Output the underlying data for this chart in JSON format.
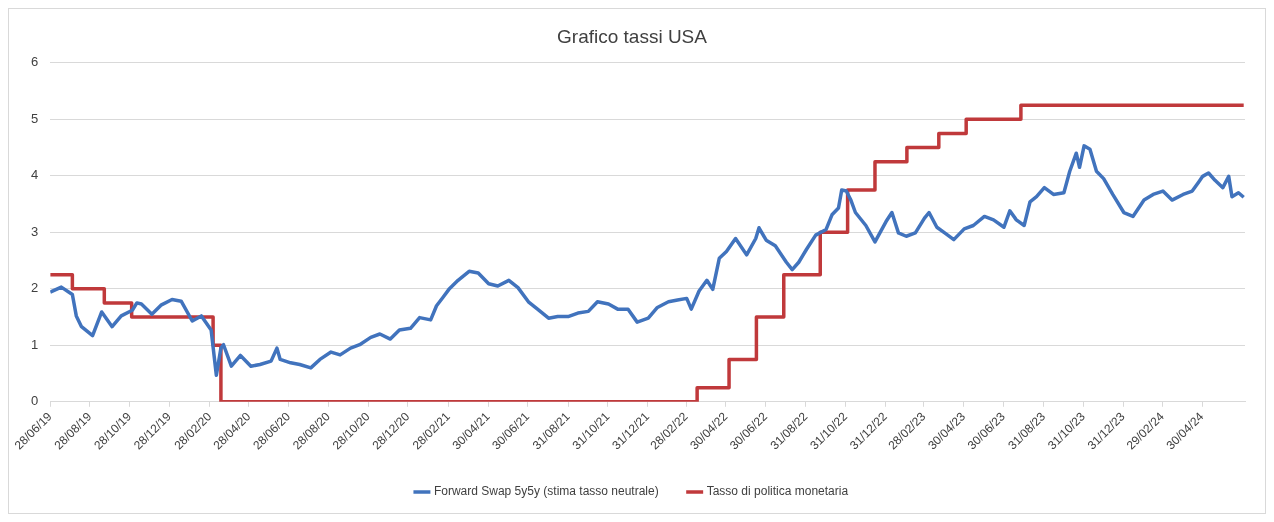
{
  "chart_data": {
    "type": "line",
    "title": "Grafico tassi USA",
    "xlim": [
      "2019-06-28",
      "2024-07-05"
    ],
    "xticks": [
      {
        "value": "2019-06-28",
        "label": "28/06/19"
      },
      {
        "value": "2019-08-28",
        "label": "28/08/19"
      },
      {
        "value": "2019-10-28",
        "label": "28/10/19"
      },
      {
        "value": "2019-12-28",
        "label": "28/12/19"
      },
      {
        "value": "2020-02-28",
        "label": "28/02/20"
      },
      {
        "value": "2020-04-28",
        "label": "28/04/20"
      },
      {
        "value": "2020-06-28",
        "label": "28/06/20"
      },
      {
        "value": "2020-08-28",
        "label": "28/08/20"
      },
      {
        "value": "2020-10-28",
        "label": "28/10/20"
      },
      {
        "value": "2020-12-28",
        "label": "28/12/20"
      },
      {
        "value": "2021-02-28",
        "label": "28/02/21"
      },
      {
        "value": "2021-04-30",
        "label": "30/04/21"
      },
      {
        "value": "2021-06-30",
        "label": "30/06/21"
      },
      {
        "value": "2021-08-31",
        "label": "31/08/21"
      },
      {
        "value": "2021-10-31",
        "label": "31/10/21"
      },
      {
        "value": "2021-12-31",
        "label": "31/12/21"
      },
      {
        "value": "2022-02-28",
        "label": "28/02/22"
      },
      {
        "value": "2022-04-30",
        "label": "30/04/22"
      },
      {
        "value": "2022-06-30",
        "label": "30/06/22"
      },
      {
        "value": "2022-08-31",
        "label": "31/08/22"
      },
      {
        "value": "2022-10-31",
        "label": "31/10/22"
      },
      {
        "value": "2022-12-31",
        "label": "31/12/22"
      },
      {
        "value": "2023-02-28",
        "label": "28/02/23"
      },
      {
        "value": "2023-04-30",
        "label": "30/04/23"
      },
      {
        "value": "2023-06-30",
        "label": "30/06/23"
      },
      {
        "value": "2023-08-31",
        "label": "31/08/23"
      },
      {
        "value": "2023-10-31",
        "label": "31/10/23"
      },
      {
        "value": "2023-12-31",
        "label": "31/12/23"
      },
      {
        "value": "2024-02-29",
        "label": "29/02/24"
      },
      {
        "value": "2024-04-30",
        "label": "30/04/24"
      }
    ],
    "ylim": [
      0,
      6
    ],
    "yticks": [
      0,
      1,
      2,
      3,
      4,
      5,
      6
    ],
    "grid": "y",
    "legend": "bottom",
    "marker": "none",
    "line_style": "solid",
    "series": [
      {
        "name": "Forward Swap 5y5y (stima tasso neutrale)",
        "type": "line",
        "color": "#4173bd",
        "x": [
          "2019-06-28",
          "2019-07-15",
          "2019-08-01",
          "2019-08-07",
          "2019-08-15",
          "2019-09-01",
          "2019-09-15",
          "2019-10-01",
          "2019-10-15",
          "2019-11-01",
          "2019-11-08",
          "2019-11-15",
          "2019-12-01",
          "2019-12-15",
          "2020-01-01",
          "2020-01-15",
          "2020-02-01",
          "2020-02-15",
          "2020-03-01",
          "2020-03-09",
          "2020-03-16",
          "2020-03-20",
          "2020-04-01",
          "2020-04-15",
          "2020-05-01",
          "2020-05-15",
          "2020-06-01",
          "2020-06-10",
          "2020-06-15",
          "2020-07-01",
          "2020-07-15",
          "2020-08-01",
          "2020-08-15",
          "2020-09-01",
          "2020-09-15",
          "2020-10-01",
          "2020-10-15",
          "2020-11-01",
          "2020-11-15",
          "2020-12-01",
          "2020-12-15",
          "2021-01-01",
          "2021-01-15",
          "2021-02-01",
          "2021-02-10",
          "2021-02-20",
          "2021-03-01",
          "2021-03-15",
          "2021-04-01",
          "2021-04-15",
          "2021-05-01",
          "2021-05-15",
          "2021-06-01",
          "2021-06-15",
          "2021-07-01",
          "2021-07-15",
          "2021-08-01",
          "2021-08-15",
          "2021-09-01",
          "2021-09-15",
          "2021-10-01",
          "2021-10-15",
          "2021-11-01",
          "2021-11-15",
          "2021-12-01",
          "2021-12-15",
          "2022-01-01",
          "2022-01-15",
          "2022-02-01",
          "2022-02-15",
          "2022-03-01",
          "2022-03-08",
          "2022-03-20",
          "2022-04-01",
          "2022-04-10",
          "2022-04-20",
          "2022-05-01",
          "2022-05-15",
          "2022-06-01",
          "2022-06-15",
          "2022-06-20",
          "2022-07-01",
          "2022-07-15",
          "2022-08-01",
          "2022-08-10",
          "2022-08-20",
          "2022-09-01",
          "2022-09-15",
          "2022-10-01",
          "2022-10-10",
          "2022-10-20",
          "2022-10-25",
          "2022-11-01",
          "2022-11-08",
          "2022-11-15",
          "2022-12-01",
          "2022-12-15",
          "2023-01-01",
          "2023-01-10",
          "2023-01-20",
          "2023-02-01",
          "2023-02-15",
          "2023-03-01",
          "2023-03-08",
          "2023-03-20",
          "2023-04-01",
          "2023-04-15",
          "2023-05-01",
          "2023-05-15",
          "2023-06-01",
          "2023-06-15",
          "2023-07-01",
          "2023-07-10",
          "2023-07-20",
          "2023-08-01",
          "2023-08-10",
          "2023-08-20",
          "2023-09-01",
          "2023-09-15",
          "2023-10-01",
          "2023-10-10",
          "2023-10-20",
          "2023-10-25",
          "2023-11-01",
          "2023-11-10",
          "2023-11-20",
          "2023-12-01",
          "2023-12-15",
          "2024-01-01",
          "2024-01-15",
          "2024-02-01",
          "2024-02-15",
          "2024-03-01",
          "2024-03-15",
          "2024-04-01",
          "2024-04-15",
          "2024-04-25",
          "2024-05-01",
          "2024-05-10",
          "2024-05-20",
          "2024-06-01",
          "2024-06-10",
          "2024-06-15",
          "2024-06-25",
          "2024-07-03"
        ],
        "values": [
          1.94,
          2.03,
          1.9,
          1.52,
          1.33,
          1.17,
          1.59,
          1.33,
          1.52,
          1.62,
          1.75,
          1.73,
          1.55,
          1.71,
          1.81,
          1.78,
          1.43,
          1.52,
          1.27,
          0.47,
          0.95,
          1.01,
          0.63,
          0.82,
          0.63,
          0.66,
          0.72,
          0.95,
          0.75,
          0.69,
          0.66,
          0.6,
          0.75,
          0.88,
          0.83,
          0.95,
          1.01,
          1.14,
          1.2,
          1.11,
          1.27,
          1.3,
          1.49,
          1.45,
          1.7,
          1.85,
          1.99,
          2.15,
          2.31,
          2.28,
          2.09,
          2.05,
          2.15,
          2.02,
          1.77,
          1.64,
          1.48,
          1.51,
          1.51,
          1.57,
          1.6,
          1.77,
          1.73,
          1.64,
          1.64,
          1.41,
          1.48,
          1.67,
          1.77,
          1.8,
          1.83,
          1.64,
          1.96,
          2.15,
          1.99,
          2.54,
          2.66,
          2.89,
          2.6,
          2.89,
          3.08,
          2.86,
          2.76,
          2.47,
          2.34,
          2.47,
          2.7,
          2.95,
          3.05,
          3.31,
          3.43,
          3.75,
          3.73,
          3.57,
          3.35,
          3.12,
          2.83,
          3.19,
          3.35,
          2.99,
          2.93,
          2.99,
          3.25,
          3.35,
          3.09,
          2.99,
          2.87,
          3.06,
          3.12,
          3.28,
          3.22,
          3.09,
          3.38,
          3.22,
          3.12,
          3.54,
          3.63,
          3.79,
          3.67,
          3.7,
          4.08,
          4.4,
          4.15,
          4.53,
          4.47,
          4.08,
          3.95,
          3.67,
          3.35,
          3.28,
          3.57,
          3.67,
          3.73,
          3.57,
          3.67,
          3.73,
          3.89,
          3.99,
          4.05,
          3.92,
          3.79,
          3.99,
          3.63,
          3.7,
          3.62
        ]
      },
      {
        "name": "Tasso di politica monetaria",
        "type": "step",
        "color": "#c0393b",
        "x": [
          "2019-06-28",
          "2019-08-01",
          "2019-09-19",
          "2019-10-31",
          "2020-03-04",
          "2020-03-16",
          "2022-03-17",
          "2022-05-05",
          "2022-06-16",
          "2022-07-28",
          "2022-09-22",
          "2022-11-03",
          "2022-12-15",
          "2023-02-02",
          "2023-03-23",
          "2023-05-04",
          "2023-07-27",
          "2024-07-03"
        ],
        "values": [
          2.25,
          2.0,
          1.75,
          1.5,
          1.0,
          0,
          0.25,
          0.75,
          1.5,
          2.25,
          3.0,
          3.75,
          4.25,
          4.5,
          4.75,
          5.0,
          5.25,
          5.25
        ]
      }
    ]
  }
}
